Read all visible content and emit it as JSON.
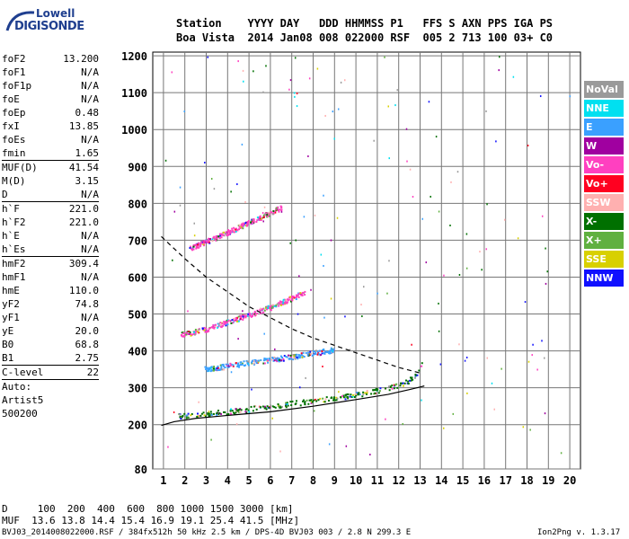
{
  "logo": {
    "line1": "Lowell",
    "line2": "DIGISONDE"
  },
  "header": {
    "row1": "Station    YYYY DAY   DDD HHMMSS P1   FFS S AXN PPS IGA PS",
    "row2": "Boa Vista  2014 Jan08 008 022000 RSF  005 2 713 100 03+ C0"
  },
  "params": [
    {
      "label": "foF2",
      "value": "13.200",
      "sep": false
    },
    {
      "label": "foF1",
      "value": "N/A",
      "sep": false
    },
    {
      "label": "foF1p",
      "value": "N/A",
      "sep": false
    },
    {
      "label": "foE",
      "value": "N/A",
      "sep": false
    },
    {
      "label": "foEp",
      "value": "0.48",
      "sep": false
    },
    {
      "label": "fxI",
      "value": "13.85",
      "sep": false
    },
    {
      "label": "foEs",
      "value": "N/A",
      "sep": false
    },
    {
      "label": "fmin",
      "value": "1.65",
      "sep": false
    },
    {
      "label": "MUF(D)",
      "value": "41.54",
      "sep": true
    },
    {
      "label": "M(D)",
      "value": "3.15",
      "sep": false
    },
    {
      "label": "D",
      "value": "N/A",
      "sep": false
    },
    {
      "label": "h`F",
      "value": "221.0",
      "sep": true
    },
    {
      "label": "h`F2",
      "value": "221.0",
      "sep": false
    },
    {
      "label": "h`E",
      "value": "N/A",
      "sep": false
    },
    {
      "label": "h`Es",
      "value": "N/A",
      "sep": false
    },
    {
      "label": "hmF2",
      "value": "309.4",
      "sep": true
    },
    {
      "label": "hmF1",
      "value": "N/A",
      "sep": false
    },
    {
      "label": "hmE",
      "value": "110.0",
      "sep": false
    },
    {
      "label": "yF2",
      "value": "74.8",
      "sep": false
    },
    {
      "label": "yF1",
      "value": "N/A",
      "sep": false
    },
    {
      "label": "yE",
      "value": "20.0",
      "sep": false
    },
    {
      "label": "B0",
      "value": "68.8",
      "sep": false
    },
    {
      "label": "B1",
      "value": "2.75",
      "sep": false
    },
    {
      "label": "C-level",
      "value": "22",
      "sep": true
    },
    {
      "label": "Auto:",
      "value": "",
      "sep": true
    },
    {
      "label": "Artist5",
      "value": "",
      "sep": false
    },
    {
      "label": "500200",
      "value": "",
      "sep": false
    }
  ],
  "legend": [
    {
      "label": "NoVal",
      "color": "#9a9a9a"
    },
    {
      "label": "NNE",
      "color": "#00e0f0"
    },
    {
      "label": "E",
      "color": "#3aa0ff"
    },
    {
      "label": "W",
      "color": "#a000a0"
    },
    {
      "label": "Vo-",
      "color": "#ff40c0"
    },
    {
      "label": "Vo+",
      "color": "#ff0020"
    },
    {
      "label": "SSW",
      "color": "#ffb0b0"
    },
    {
      "label": "X-",
      "color": "#007000"
    },
    {
      "label": "X+",
      "color": "#60b040"
    },
    {
      "label": "SSE",
      "color": "#d8d000"
    },
    {
      "label": "NNW",
      "color": "#1010ff"
    }
  ],
  "chart_data": {
    "type": "scatter",
    "x_ticks": [
      1,
      2,
      3,
      4,
      5,
      6,
      7,
      8,
      9,
      10,
      11,
      12,
      13,
      14,
      15,
      16,
      17,
      18,
      19,
      20
    ],
    "y_ticks": [
      80,
      200,
      300,
      400,
      500,
      600,
      700,
      800,
      900,
      1000,
      1100,
      1200
    ],
    "xlim": [
      0.5,
      20.5
    ],
    "ylim": [
      80,
      1210
    ],
    "grid": true,
    "traces": [
      {
        "name": "F2 1st hop",
        "x": [
          1.7,
          2.5,
          3.5,
          4.5,
          5.5,
          6.5,
          7.5,
          8.5,
          9.5,
          10.5,
          11.5,
          12.3,
          12.8,
          13.1
        ],
        "y": [
          225,
          228,
          235,
          240,
          248,
          255,
          262,
          270,
          278,
          288,
          300,
          315,
          335,
          375
        ],
        "color": "#007000"
      },
      {
        "name": "F2 2nd hop",
        "x": [
          1.8,
          3,
          4,
          5,
          6,
          7,
          7.6
        ],
        "y": [
          445,
          460,
          480,
          500,
          520,
          545,
          560
        ],
        "color": "#ff40c0"
      },
      {
        "name": "F2 3rd hop",
        "x": [
          2.2,
          3.5,
          5,
          6.5
        ],
        "y": [
          680,
          710,
          750,
          790
        ],
        "color": "#ff40c0"
      },
      {
        "name": "oblique E",
        "x": [
          2.9,
          4,
          5,
          6,
          7,
          8,
          9
        ],
        "y": [
          352,
          360,
          370,
          378,
          385,
          395,
          405
        ],
        "color": "#3aa0ff"
      }
    ],
    "profile": {
      "x": [
        0.9,
        1.5,
        2.5,
        4,
        6,
        8,
        10,
        11.5,
        12.5,
        13,
        13.2
      ],
      "y": [
        198,
        208,
        217,
        225,
        235,
        250,
        268,
        282,
        295,
        302,
        305
      ]
    },
    "dashed": {
      "x": [
        0.9,
        2,
        3,
        4,
        5,
        6,
        7,
        8,
        9,
        10,
        11,
        12,
        13
      ],
      "y": [
        710,
        650,
        600,
        560,
        520,
        490,
        460,
        435,
        415,
        395,
        375,
        355,
        340
      ]
    }
  },
  "footer": {
    "d_row": "D     100  200  400  600  800 1000 1500 3000 [km]",
    "muf_row": "MUF  13.6 13.8 14.4 15.4 16.9 19.1 25.4 41.5 [MHz]",
    "file_info": "BVJ03_2014008022000.RSF / 384fx512h 50 kHz 2.5 km / DPS-4D BVJ03 003 / 2.8 N 299.3 E",
    "version": "Ion2Png v. 1.3.17"
  }
}
